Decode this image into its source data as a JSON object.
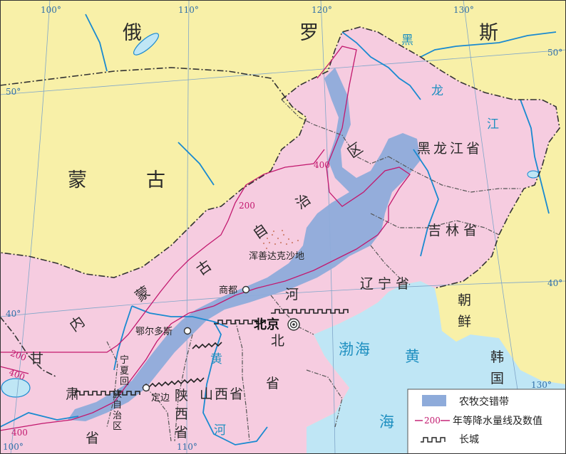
{
  "countries": {
    "russia": [
      "俄",
      "罗",
      "斯"
    ],
    "mongolia": [
      "蒙",
      "古"
    ],
    "korea": [
      "朝",
      "鲜"
    ],
    "rok": [
      "韩",
      "国"
    ]
  },
  "provinces": {
    "heilongjiang": "黑龙江省",
    "jilin": "吉林省",
    "liaoning": "辽宁省",
    "shanxi": "山西省",
    "hebei": [
      "河",
      "北"
    ],
    "hebei_sheng": "省",
    "neimenggu": [
      "内",
      "蒙",
      "古",
      "自",
      "治",
      "区"
    ],
    "heilong_v": [
      "黑",
      "龙",
      "江"
    ],
    "ningxia": [
      "宁",
      "夏",
      "回",
      "族",
      "自",
      "治",
      "区"
    ],
    "shaanxi": [
      "陕",
      "西",
      "省"
    ],
    "gansu": [
      "甘",
      "肃",
      "省"
    ]
  },
  "seas": {
    "bohai": "渤海",
    "huanghai": "黄",
    "hai": "海"
  },
  "rivers": {
    "huanghe": [
      "黄",
      "河"
    ]
  },
  "places": {
    "hunshandake": "浑善达克沙地",
    "shangdu": "商都",
    "erdos": "鄂尔多斯",
    "dingbian": "定边",
    "beijing": "北京"
  },
  "coords": {
    "lon100": "100°",
    "lon110": "110°",
    "lon120": "120°",
    "lon130": "130°",
    "lat50_left": "50°",
    "lat50_right": "50°",
    "lat40_left": "40°",
    "lat40_right": "40°",
    "lon100_bottom": "100°",
    "lon110_bottom": "110°",
    "lon130_bottom": "130°"
  },
  "isohyets": {
    "v200_top": "200",
    "v400_top": "400",
    "v200_left": "200",
    "v400_left": "400",
    "v400_bottom": "400"
  },
  "legend": {
    "ecotone": "农牧交错带",
    "isohyet_value": "200",
    "isohyet_text": "年等降水量线及数值",
    "wall": "长城"
  },
  "colors": {
    "china": "#f6cce0",
    "foreign": "#f8f0a8",
    "sea": "#bfe6f5",
    "ecotone": "#8eabda",
    "isohyet": "#c2186e",
    "river": "#1a8ad0"
  }
}
